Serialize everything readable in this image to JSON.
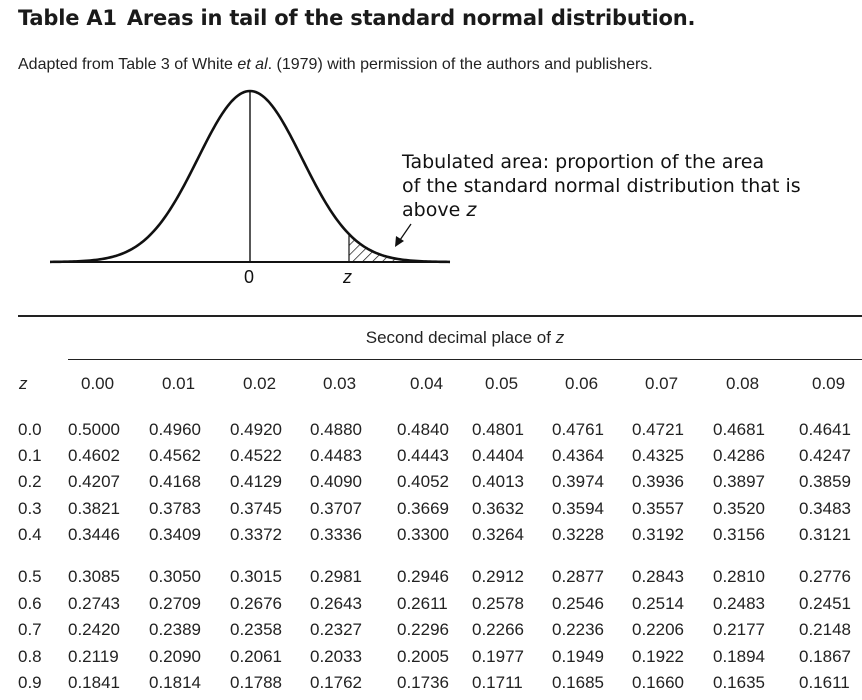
{
  "title": {
    "number": "Table A1",
    "text": "Areas in tail of the standard normal distribution."
  },
  "source": {
    "before": "Adapted from Table 3 of White ",
    "etal": "et al",
    "after": ". (1979) with permission of the authors and publishers."
  },
  "figure": {
    "caption_line1": "Tabulated area: proportion of the area",
    "caption_line2": "of the standard normal distribution that is",
    "caption_line3": "above ",
    "caption_var": "z",
    "label_zero": "0",
    "label_z": "z"
  },
  "table": {
    "header_title": "Second decimal place of ",
    "header_title_var": "z",
    "row_header": "z",
    "columns": [
      "0.00",
      "0.01",
      "0.02",
      "0.03",
      "0.04",
      "0.05",
      "0.06",
      "0.07",
      "0.08",
      "0.09"
    ],
    "rows": [
      {
        "z": "0.0",
        "values": [
          "0.5000",
          "0.4960",
          "0.4920",
          "0.4880",
          "0.4840",
          "0.4801",
          "0.4761",
          "0.4721",
          "0.4681",
          "0.4641"
        ]
      },
      {
        "z": "0.1",
        "values": [
          "0.4602",
          "0.4562",
          "0.4522",
          "0.4483",
          "0.4443",
          "0.4404",
          "0.4364",
          "0.4325",
          "0.4286",
          "0.4247"
        ]
      },
      {
        "z": "0.2",
        "values": [
          "0.4207",
          "0.4168",
          "0.4129",
          "0.4090",
          "0.4052",
          "0.4013",
          "0.3974",
          "0.3936",
          "0.3897",
          "0.3859"
        ]
      },
      {
        "z": "0.3",
        "values": [
          "0.3821",
          "0.3783",
          "0.3745",
          "0.3707",
          "0.3669",
          "0.3632",
          "0.3594",
          "0.3557",
          "0.3520",
          "0.3483"
        ]
      },
      {
        "z": "0.4",
        "values": [
          "0.3446",
          "0.3409",
          "0.3372",
          "0.3336",
          "0.3300",
          "0.3264",
          "0.3228",
          "0.3192",
          "0.3156",
          "0.3121"
        ]
      },
      {
        "z": "0.5",
        "values": [
          "0.3085",
          "0.3050",
          "0.3015",
          "0.2981",
          "0.2946",
          "0.2912",
          "0.2877",
          "0.2843",
          "0.2810",
          "0.2776"
        ]
      },
      {
        "z": "0.6",
        "values": [
          "0.2743",
          "0.2709",
          "0.2676",
          "0.2643",
          "0.2611",
          "0.2578",
          "0.2546",
          "0.2514",
          "0.2483",
          "0.2451"
        ]
      },
      {
        "z": "0.7",
        "values": [
          "0.2420",
          "0.2389",
          "0.2358",
          "0.2327",
          "0.2296",
          "0.2266",
          "0.2236",
          "0.2206",
          "0.2177",
          "0.2148"
        ]
      },
      {
        "z": "0.8",
        "values": [
          "0.2119",
          "0.2090",
          "0.2061",
          "0.2033",
          "0.2005",
          "0.1977",
          "0.1949",
          "0.1922",
          "0.1894",
          "0.1867"
        ]
      },
      {
        "z": "0.9",
        "values": [
          "0.1841",
          "0.1814",
          "0.1788",
          "0.1762",
          "0.1736",
          "0.1711",
          "0.1685",
          "0.1660",
          "0.1635",
          "0.1611"
        ]
      }
    ]
  }
}
